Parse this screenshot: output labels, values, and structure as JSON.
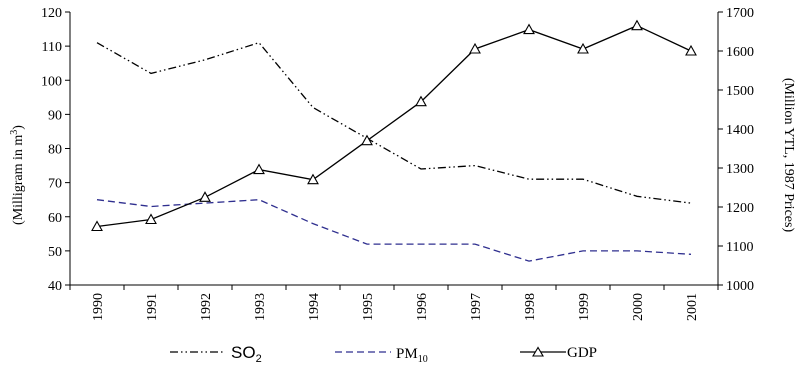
{
  "chart_data": {
    "type": "line",
    "categories": [
      "1990",
      "1991",
      "1992",
      "1993",
      "1994",
      "1995",
      "1996",
      "1997",
      "1998",
      "1999",
      "2000",
      "2001"
    ],
    "y_left": {
      "label": "(Milligram in m",
      "label_sup": "3",
      "label_end": ")",
      "lim": [
        40,
        120
      ],
      "ticks": [
        40,
        50,
        60,
        70,
        80,
        90,
        100,
        110,
        120
      ]
    },
    "y_right": {
      "label": "(Million YTL, 1987 Prices)",
      "lim": [
        1000,
        1700
      ],
      "ticks": [
        1000,
        1100,
        1200,
        1300,
        1400,
        1500,
        1600,
        1700
      ]
    },
    "series": [
      {
        "key": "so2",
        "name": "SO",
        "name_sub": "2",
        "axis": "left",
        "style": "dash-dot-dot",
        "color": "#000000",
        "values": [
          111,
          102,
          106,
          111,
          92,
          83,
          74,
          75,
          71,
          71,
          66,
          64
        ]
      },
      {
        "key": "pm10",
        "name": "PM",
        "name_sub": "10",
        "axis": "left",
        "style": "dashed",
        "color": "#2f2f8f",
        "values": [
          65,
          63,
          64,
          65,
          58,
          52,
          52,
          52,
          47,
          50,
          50,
          49
        ]
      },
      {
        "key": "gdp",
        "name": "GDP",
        "axis": "right",
        "style": "solid-triangle",
        "color": "#000000",
        "values": [
          1150,
          1168,
          1225,
          1296,
          1270,
          1370,
          1470,
          1605,
          1655,
          1605,
          1665,
          1600
        ]
      }
    ],
    "legend_position": "bottom",
    "grid": false
  }
}
